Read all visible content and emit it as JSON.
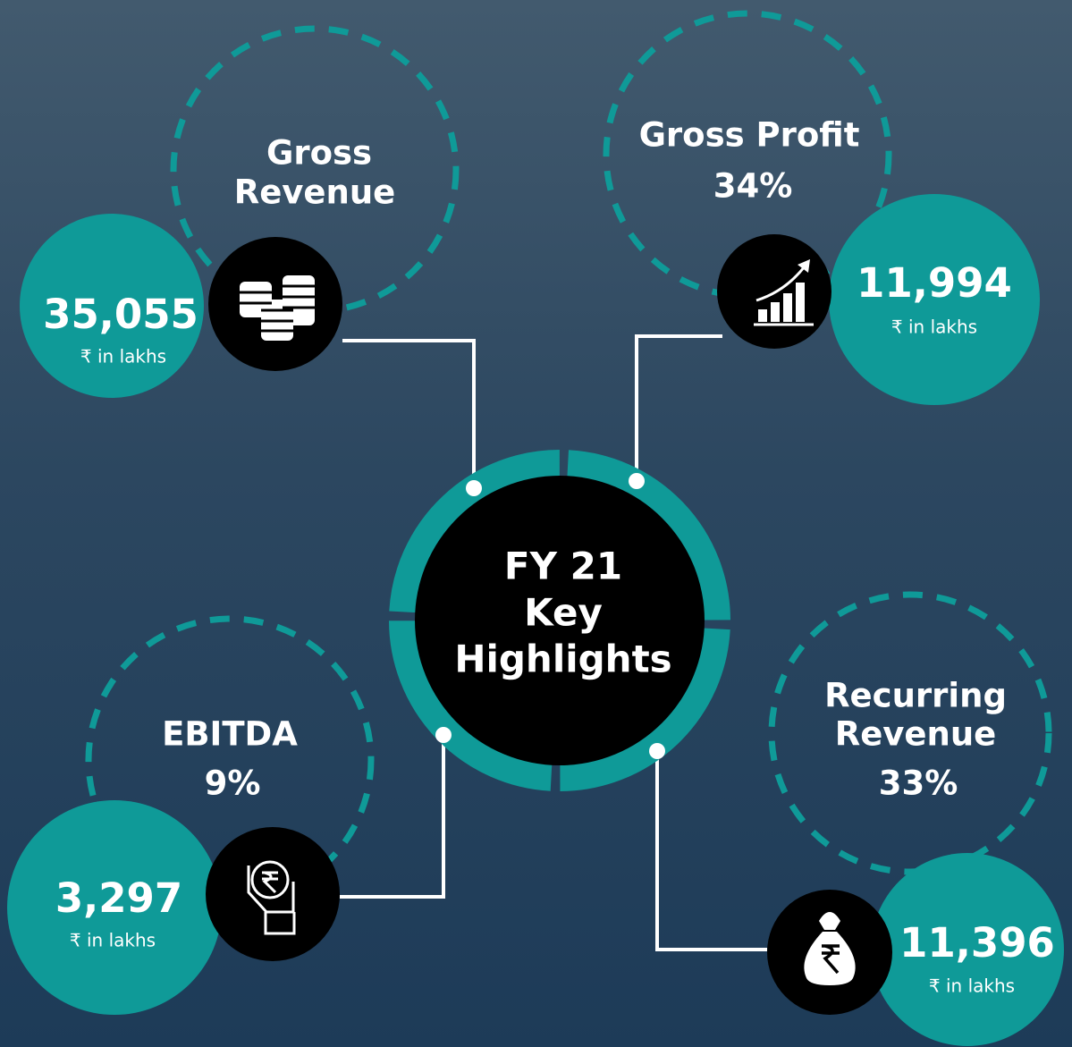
{
  "center": {
    "lines": [
      "FY 21",
      "Key",
      "Highlights"
    ]
  },
  "items": [
    {
      "title": [
        "Gross",
        "Revenue"
      ],
      "value": "35,055",
      "unit": "₹ in lakhs"
    },
    {
      "title": [
        "Gross Profit",
        "34%"
      ],
      "value": "11,994",
      "unit": "₹ in lakhs"
    },
    {
      "title": [
        "EBITDA",
        "9%"
      ],
      "value": "3,297",
      "unit": "₹ in lakhs"
    },
    {
      "title": [
        "Recurring",
        "Revenue",
        "33%"
      ],
      "value": "11,396",
      "unit": "₹ in lakhs"
    }
  ]
}
